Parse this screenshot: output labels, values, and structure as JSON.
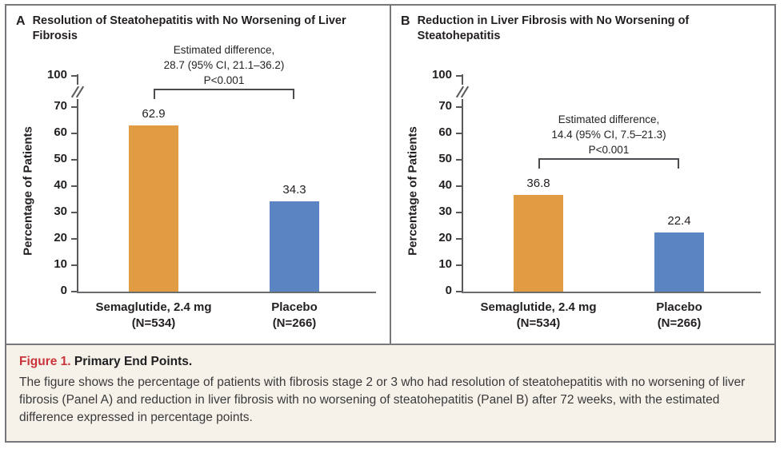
{
  "figure": {
    "caption_label": "Figure 1.",
    "caption_title": "Primary End Points.",
    "caption_body": "The figure shows the percentage of patients with fibrosis stage 2 or 3 who had resolution of steatohepatitis with no worsening of liver fibrosis (Panel A) and reduction in liver fibrosis with no worsening of steatohepatitis (Panel B) after 72 weeks, with the estimated difference expressed in percentage points."
  },
  "colors": {
    "semaglutide_bar": "#E19B42",
    "placebo_bar": "#5B84C3",
    "figure_label_red": "#C9343A",
    "frame_gray": "#77787B",
    "caption_bg": "#F6F2E9",
    "axis_gray": "#58595B"
  },
  "chart_data": [
    {
      "type": "bar",
      "panel_label": "A",
      "title": "Resolution of Steatohepatitis with No Worsening of Liver Fibrosis",
      "ylabel": "Percentage of Patients",
      "ylim": [
        0,
        100
      ],
      "yticks": [
        0,
        10,
        20,
        30,
        40,
        50,
        60,
        70,
        100
      ],
      "axis_break_between": [
        70,
        100
      ],
      "grid": false,
      "categories": [
        {
          "name": "Semaglutide, 2.4 mg",
          "n": "(N=534)"
        },
        {
          "name": "Placebo",
          "n": "(N=266)"
        }
      ],
      "values": [
        62.9,
        34.3
      ],
      "value_labels": [
        "62.9",
        "34.3"
      ],
      "bar_colors": [
        "#E19B42",
        "#5B84C3"
      ],
      "annotation": [
        "Estimated difference,",
        "28.7 (95% CI, 21.1–36.2)",
        "P<0.001"
      ]
    },
    {
      "type": "bar",
      "panel_label": "B",
      "title": "Reduction in Liver Fibrosis with No Worsening of Steatohepatitis",
      "ylabel": "Percentage of Patients",
      "ylim": [
        0,
        100
      ],
      "yticks": [
        0,
        10,
        20,
        30,
        40,
        50,
        60,
        70,
        100
      ],
      "axis_break_between": [
        70,
        100
      ],
      "grid": false,
      "categories": [
        {
          "name": "Semaglutide, 2.4 mg",
          "n": "(N=534)"
        },
        {
          "name": "Placebo",
          "n": "(N=266)"
        }
      ],
      "values": [
        36.8,
        22.4
      ],
      "value_labels": [
        "36.8",
        "22.4"
      ],
      "bar_colors": [
        "#E19B42",
        "#5B84C3"
      ],
      "annotation": [
        "Estimated difference,",
        "14.4 (95% CI, 7.5–21.3)",
        "P<0.001"
      ]
    }
  ]
}
